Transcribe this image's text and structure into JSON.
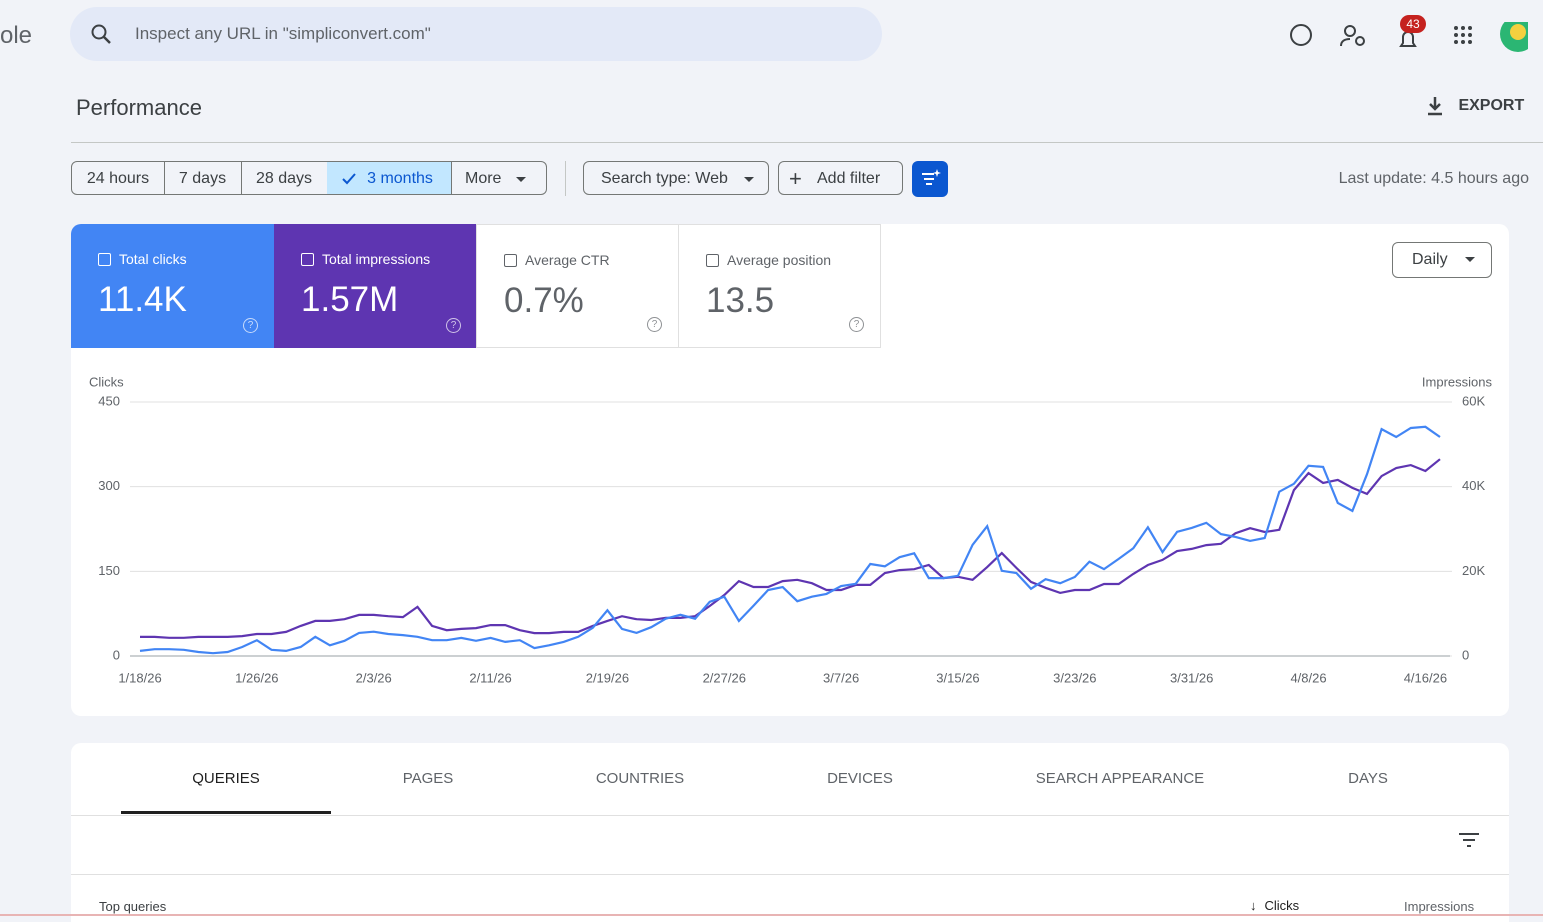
{
  "header": {
    "logo_fragment": "ole",
    "search_placeholder": "Inspect any URL in \"simpliconvert.com\"",
    "notification_count": 43
  },
  "page": {
    "title": "Performance",
    "export": "EXPORT"
  },
  "filters": {
    "ranges": [
      "24 hours",
      "7 days",
      "28 days",
      "3 months",
      "More"
    ],
    "search_type": "Search type: Web",
    "add_filter": "Add filter",
    "last_update": "Last update: 4.5 hours ago"
  },
  "metrics": [
    {
      "label": "Total clicks",
      "value": "11.4K"
    },
    {
      "label": "Total impressions",
      "value": "1.57M"
    },
    {
      "label": "Average CTR",
      "value": "0.7%"
    },
    {
      "label": "Average position",
      "value": "13.5"
    }
  ],
  "granularity": "Daily",
  "chart_data": {
    "type": "line",
    "y_label": "Clicks",
    "y2_label": "Impressions",
    "categories": [
      "1/18/26",
      null,
      null,
      null,
      null,
      null,
      null,
      null,
      "1/26/26",
      null,
      null,
      null,
      null,
      null,
      null,
      null,
      "2/3/26",
      null,
      null,
      null,
      null,
      null,
      null,
      null,
      "2/11/26",
      null,
      null,
      null,
      null,
      null,
      null,
      null,
      "2/19/26",
      null,
      null,
      null,
      null,
      null,
      null,
      null,
      "2/27/26",
      null,
      null,
      null,
      null,
      null,
      null,
      null,
      "3/7/26",
      null,
      null,
      null,
      null,
      null,
      null,
      null,
      "3/15/26",
      null,
      null,
      null,
      null,
      null,
      null,
      null,
      "3/23/26",
      null,
      null,
      null,
      null,
      null,
      null,
      null,
      "3/31/26",
      null,
      null,
      null,
      null,
      null,
      null,
      null,
      "4/8/26",
      null,
      null,
      null,
      null,
      null,
      null,
      null,
      "4/16/26",
      null
    ],
    "series": [
      {
        "color": "#4285f4",
        "values": [
          9,
          12,
          12,
          11,
          7,
          5,
          7,
          16,
          28,
          11,
          9,
          16,
          34,
          19,
          27,
          41,
          43,
          39,
          37,
          34,
          28,
          28,
          32,
          27,
          32,
          25,
          28,
          14,
          19,
          25,
          34,
          50,
          81,
          48,
          41,
          51,
          66,
          73,
          66,
          96,
          105,
          62,
          89,
          117,
          122,
          97,
          105,
          110,
          124,
          128,
          163,
          159,
          175,
          182,
          138,
          138,
          142,
          197,
          230,
          151,
          147,
          119,
          136,
          129,
          140,
          167,
          154,
          172,
          191,
          228,
          184,
          220,
          227,
          236,
          216,
          211,
          204,
          209,
          291,
          305,
          337,
          335,
          271,
          257,
          322,
          402,
          388,
          404,
          406,
          388
        ]
      },
      {
        "color": "#5e35b1",
        "axis": "y2",
        "values": [
          4500,
          4500,
          4300,
          4300,
          4500,
          4500,
          4500,
          4700,
          5200,
          5200,
          5700,
          7100,
          8300,
          8300,
          8700,
          9700,
          9700,
          9400,
          9200,
          11600,
          7100,
          6100,
          6400,
          6600,
          7300,
          7300,
          6100,
          5400,
          5400,
          5700,
          5700,
          7100,
          8300,
          9400,
          8700,
          8500,
          9000,
          9000,
          9400,
          11800,
          14400,
          17700,
          16300,
          16300,
          17700,
          18000,
          17200,
          15600,
          15600,
          16800,
          16800,
          19600,
          20300,
          20500,
          21500,
          18400,
          18700,
          18000,
          21000,
          24300,
          20800,
          17500,
          16100,
          14900,
          15600,
          15600,
          17000,
          17000,
          19400,
          21500,
          22700,
          24800,
          25300,
          26200,
          26500,
          29000,
          30200,
          29300,
          29800,
          39200,
          43200,
          40900,
          41600,
          39700,
          38300,
          42500,
          44400,
          45100,
          43700,
          46500
        ]
      }
    ],
    "ylim": [
      0,
      450
    ],
    "yticks": [
      0,
      150,
      300,
      450
    ],
    "y2lim": [
      0,
      60000
    ],
    "y2ticks": [
      0,
      {
        "value": 20000,
        "label": "20K"
      },
      {
        "value": 40000,
        "label": "40K"
      },
      {
        "value": 60000,
        "label": "60K"
      }
    ],
    "grid": true
  },
  "tabs": [
    "QUERIES",
    "PAGES",
    "COUNTRIES",
    "DEVICES",
    "SEARCH APPEARANCE",
    "DAYS"
  ],
  "table": {
    "title": "Top queries",
    "columns": [
      "Clicks",
      "Impressions"
    ]
  }
}
